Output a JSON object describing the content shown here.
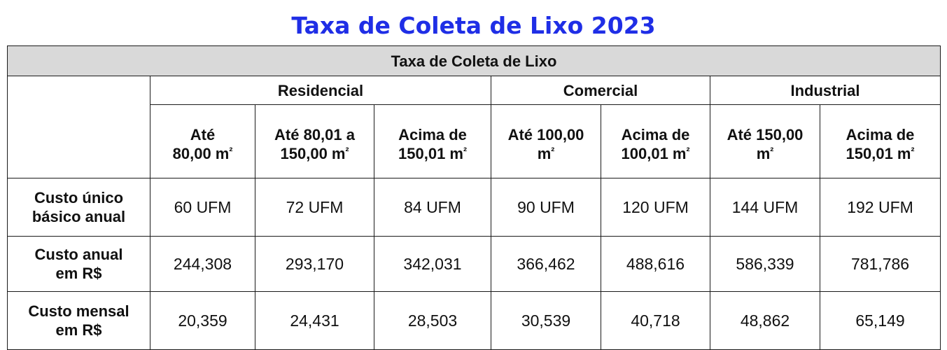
{
  "page": {
    "title": "Taxa de Coleta de Lixo 2023"
  },
  "table": {
    "caption": "Taxa de Coleta de Lixo",
    "groups": {
      "residencial": "Residencial",
      "comercial": "Comercial",
      "industrial": "Industrial"
    },
    "ranges": [
      {
        "line1": "Até",
        "line2": "80,00 m",
        "unit": "²"
      },
      {
        "line1": "Até 80,01 a",
        "line2": "150,00 m",
        "unit": "²"
      },
      {
        "line1": "Acima de",
        "line2": "150,01 m",
        "unit": "²"
      },
      {
        "line1": "Até 100,00",
        "line2": "m",
        "unit": "²"
      },
      {
        "line1": "Acima de",
        "line2": "100,01 m",
        "unit": "²"
      },
      {
        "line1": "Até 150,00",
        "line2": "m",
        "unit": "²"
      },
      {
        "line1": "Acima de",
        "line2": "150,01 m",
        "unit": "²"
      }
    ],
    "rows": [
      {
        "label_line1": "Custo único",
        "label_line2": "básico anual",
        "values": [
          "60 UFM",
          "72 UFM",
          "84 UFM",
          "90 UFM",
          "120 UFM",
          "144 UFM",
          "192 UFM"
        ]
      },
      {
        "label_line1": "Custo anual",
        "label_line2": "em R$",
        "values": [
          "244,308",
          "293,170",
          "342,031",
          "366,462",
          "488,616",
          "586,339",
          "781,786"
        ]
      },
      {
        "label_line1": "Custo mensal",
        "label_line2": "em R$",
        "values": [
          "20,359",
          "24,431",
          "28,503",
          "30,539",
          "40,718",
          "48,862",
          "65,149"
        ]
      }
    ]
  },
  "colors": {
    "title": "#1f2ee6",
    "header_fill": "#d9d9d9",
    "border": "#1a1a1a"
  }
}
